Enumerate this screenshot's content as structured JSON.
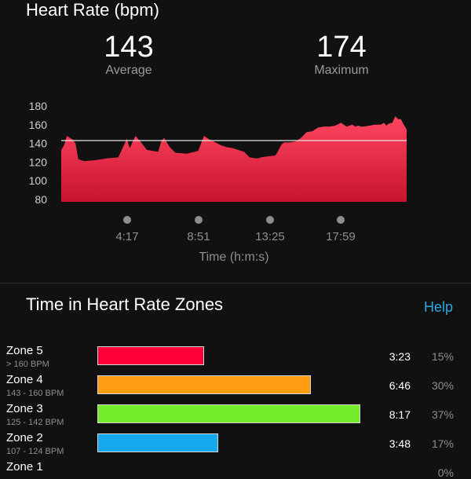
{
  "header": {
    "title": "Heart Rate (bpm)"
  },
  "stats": {
    "average": {
      "value": "143",
      "label": "Average"
    },
    "maximum": {
      "value": "174",
      "label": "Maximum"
    }
  },
  "chart_data": {
    "type": "area",
    "y_ticks": [
      "180",
      "160",
      "140",
      "120",
      "100",
      "80"
    ],
    "ylim": [
      80,
      180
    ],
    "x_ticks": [
      "4:17",
      "8:51",
      "13:25",
      "17:59"
    ],
    "xlabel": "Time (h:m:s)",
    "average_line": 143,
    "x": [
      0,
      5,
      10,
      20,
      25,
      30,
      40,
      60,
      80,
      100,
      115,
      120,
      130,
      140,
      150,
      160,
      170,
      175,
      180,
      190,
      200,
      220,
      240,
      250,
      260,
      270,
      280,
      290,
      300,
      310,
      320,
      330,
      340,
      345,
      350,
      360,
      375,
      380,
      385,
      390,
      400,
      410,
      420,
      430,
      440,
      450,
      460,
      470,
      480,
      490,
      500,
      510,
      515,
      520,
      525,
      530,
      540,
      550,
      560,
      565,
      570,
      573,
      580,
      585,
      590,
      595,
      600,
      605
    ],
    "values": [
      133,
      138,
      148,
      144,
      140,
      123,
      121,
      122,
      124,
      125,
      145,
      135,
      148,
      141,
      133,
      132,
      131,
      142,
      146,
      136,
      130,
      129,
      132,
      148,
      144,
      141,
      138,
      136,
      135,
      133,
      131,
      125,
      124,
      124,
      125,
      126,
      127,
      132,
      138,
      141,
      141,
      142,
      146,
      152,
      153,
      157,
      158,
      158,
      159,
      162,
      158,
      160,
      158,
      159,
      158,
      158,
      159,
      160,
      160,
      162,
      159,
      161,
      162,
      169,
      166,
      166,
      160,
      155
    ],
    "colors": {
      "fill_top": "#ff4560",
      "fill_bottom": "#c8142e",
      "avg_line": "#e6e6e6"
    }
  },
  "zones_section": {
    "title": "Time in Heart Rate Zones",
    "help_label": "Help"
  },
  "zones": [
    {
      "name": "Zone 5",
      "range": "> 160 BPM",
      "time": "3:23",
      "percent": "15%",
      "fraction": 0.15,
      "color": "#ff003a"
    },
    {
      "name": "Zone 4",
      "range": "143 - 160 BPM",
      "time": "6:46",
      "percent": "30%",
      "fraction": 0.3,
      "color": "#ff9c12"
    },
    {
      "name": "Zone 3",
      "range": "125 - 142 BPM",
      "time": "8:17",
      "percent": "37%",
      "fraction": 0.37,
      "color": "#74ec2a"
    },
    {
      "name": "Zone 2",
      "range": "107 - 124 BPM",
      "time": "3:48",
      "percent": "17%",
      "fraction": 0.17,
      "color": "#16a8ec"
    },
    {
      "name": "Zone 1",
      "range": "",
      "time": "",
      "percent": "0%",
      "fraction": 0.0,
      "color": "#9a9a9a"
    }
  ]
}
